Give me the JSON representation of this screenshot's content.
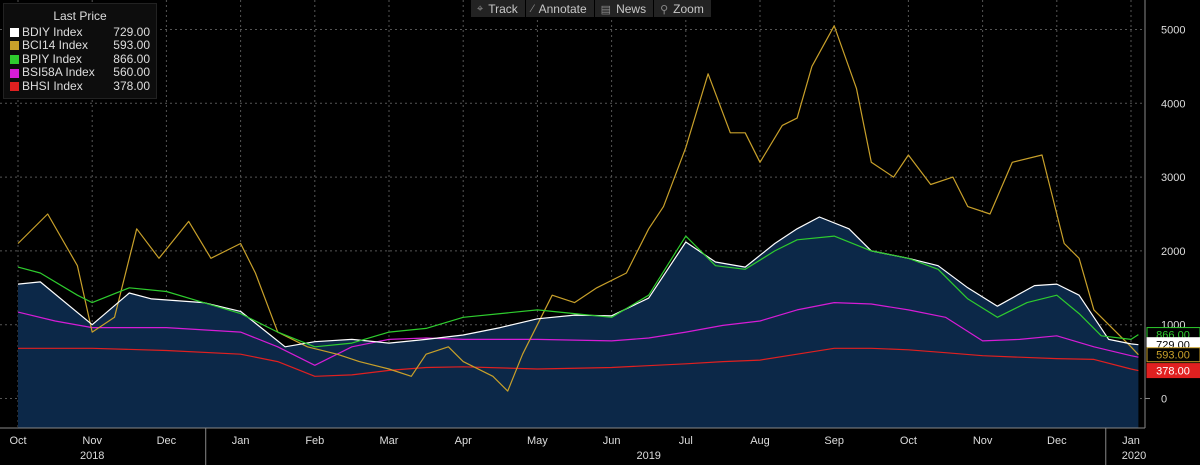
{
  "toolbar": [
    {
      "label": "Track",
      "icon": "crosshair-icon",
      "glyph": "⌖"
    },
    {
      "label": "Annotate",
      "icon": "pencil-icon",
      "glyph": "⁄"
    },
    {
      "label": "News",
      "icon": "news-icon",
      "glyph": "▤"
    },
    {
      "label": "Zoom",
      "icon": "magnifier-icon",
      "glyph": "⚲"
    }
  ],
  "legend": {
    "title": "Last Price",
    "items": [
      {
        "name": "BDIY Index",
        "value": "729.00",
        "color": "#ffffff"
      },
      {
        "name": "BCI14 Index",
        "value": "593.00",
        "color": "#c8a02a"
      },
      {
        "name": "BPIY Index",
        "value": "866.00",
        "color": "#2ecc2e"
      },
      {
        "name": "BSI58A Index",
        "value": "560.00",
        "color": "#d61cd6"
      },
      {
        "name": "BHSI Index",
        "value": "378.00",
        "color": "#e02020"
      }
    ]
  },
  "chart_data": {
    "type": "line",
    "ylim": [
      -400,
      5400
    ],
    "y_ticks": [
      0,
      1000,
      2000,
      3000,
      4000,
      5000
    ],
    "x_months": [
      "Oct",
      "Nov",
      "Dec",
      "Jan",
      "Feb",
      "Mar",
      "Apr",
      "May",
      "Jun",
      "Jul",
      "Aug",
      "Sep",
      "Oct",
      "Nov",
      "Dec",
      "Jan"
    ],
    "x_years": [
      "2018",
      "2019",
      "2020"
    ],
    "grid": true,
    "legend_position": "top-left",
    "last_labels": [
      {
        "text": "866.00",
        "value": 866,
        "color": "#2ecc2e",
        "text_color": "#2ecc2e"
      },
      {
        "text": "729.00",
        "value": 729,
        "color": "#ffffff",
        "text_color": "#000000"
      },
      {
        "text": "593.00",
        "value": 593,
        "color": "#c8a02a",
        "text_color": "#c8a02a"
      },
      {
        "text": "378.00",
        "value": 378,
        "color": "#e02020",
        "text_color": "#ffffff"
      }
    ],
    "series": [
      {
        "name": "BDIY Index",
        "color": "#ffffff",
        "fill": "#0c2848",
        "x": [
          0,
          0.3,
          1,
          1.5,
          1.8,
          2.5,
          3,
          3.6,
          4,
          4.5,
          5,
          5.5,
          6,
          6.5,
          7,
          7.5,
          8,
          8.5,
          9,
          9.4,
          9.8,
          10.2,
          10.5,
          10.8,
          11.2,
          11.5,
          12,
          12.4,
          12.8,
          13.2,
          13.7,
          14,
          14.3,
          14.7,
          15,
          15.1
        ],
        "values": [
          1550,
          1580,
          1000,
          1430,
          1350,
          1300,
          1180,
          700,
          770,
          800,
          750,
          800,
          860,
          960,
          1080,
          1130,
          1120,
          1360,
          2120,
          1850,
          1780,
          2100,
          2300,
          2460,
          2300,
          2000,
          1900,
          1800,
          1500,
          1250,
          1530,
          1550,
          1400,
          800,
          740,
          729
        ]
      },
      {
        "name": "BCI14 Index",
        "color": "#c8a02a",
        "x": [
          0,
          0.4,
          0.8,
          1,
          1.3,
          1.6,
          1.9,
          2.3,
          2.6,
          3,
          3.2,
          3.5,
          3.9,
          4.3,
          4.6,
          5,
          5.3,
          5.5,
          5.8,
          6,
          6.4,
          6.6,
          6.8,
          7.2,
          7.5,
          7.8,
          8.2,
          8.5,
          8.7,
          9,
          9.3,
          9.6,
          9.8,
          10,
          10.3,
          10.5,
          10.7,
          11,
          11.3,
          11.5,
          11.8,
          12,
          12.3,
          12.6,
          12.8,
          13.1,
          13.4,
          13.8,
          14.1,
          14.3,
          14.5,
          14.8,
          15,
          15.1
        ],
        "values": [
          2100,
          2500,
          1800,
          900,
          1100,
          2300,
          1900,
          2400,
          1900,
          2100,
          1700,
          900,
          700,
          600,
          500,
          400,
          300,
          600,
          700,
          500,
          300,
          100,
          600,
          1400,
          1300,
          1500,
          1700,
          2300,
          2600,
          3400,
          4400,
          3600,
          3600,
          3200,
          3700,
          3800,
          4500,
          5050,
          4200,
          3200,
          3000,
          3300,
          2900,
          3000,
          2600,
          2500,
          3200,
          3300,
          2100,
          1900,
          1200,
          900,
          700,
          593
        ]
      },
      {
        "name": "BPIY Index",
        "color": "#2ecc2e",
        "x": [
          0,
          0.3,
          0.8,
          1,
          1.5,
          2,
          2.5,
          3,
          3.5,
          4,
          4.5,
          5,
          5.5,
          6,
          6.5,
          7,
          7.5,
          8,
          8.5,
          9,
          9.4,
          9.8,
          10.2,
          10.5,
          11,
          11.5,
          12,
          12.4,
          12.8,
          13.2,
          13.6,
          14,
          14.3,
          14.6,
          15,
          15.1
        ],
        "values": [
          1780,
          1700,
          1400,
          1300,
          1500,
          1450,
          1300,
          1150,
          900,
          700,
          750,
          900,
          950,
          1100,
          1150,
          1200,
          1150,
          1100,
          1400,
          2200,
          1800,
          1750,
          2000,
          2150,
          2200,
          2000,
          1900,
          1750,
          1350,
          1100,
          1300,
          1400,
          1150,
          850,
          800,
          866
        ]
      },
      {
        "name": "BSI58A Index",
        "color": "#d61cd6",
        "x": [
          0,
          0.5,
          1,
          2,
          3,
          3.5,
          4,
          4.5,
          5,
          5.5,
          6,
          7,
          8,
          8.5,
          9,
          9.5,
          10,
          10.5,
          11,
          11.5,
          12,
          12.5,
          13,
          13.5,
          14,
          14.5,
          15,
          15.1
        ],
        "values": [
          1170,
          1050,
          960,
          960,
          900,
          700,
          450,
          700,
          800,
          820,
          800,
          800,
          780,
          820,
          900,
          990,
          1050,
          1200,
          1300,
          1280,
          1200,
          1100,
          780,
          800,
          850,
          700,
          580,
          560
        ]
      },
      {
        "name": "BHSI Index",
        "color": "#e02020",
        "x": [
          0,
          1,
          2,
          3,
          3.5,
          4,
          4.5,
          5,
          5.5,
          6,
          7,
          8,
          9,
          9.5,
          10,
          10.5,
          11,
          11.5,
          12,
          12.5,
          13,
          13.5,
          14,
          14.5,
          15,
          15.1
        ],
        "values": [
          680,
          680,
          650,
          600,
          500,
          300,
          320,
          380,
          420,
          430,
          400,
          420,
          470,
          500,
          520,
          600,
          680,
          680,
          660,
          620,
          580,
          560,
          540,
          530,
          400,
          378
        ]
      }
    ]
  }
}
